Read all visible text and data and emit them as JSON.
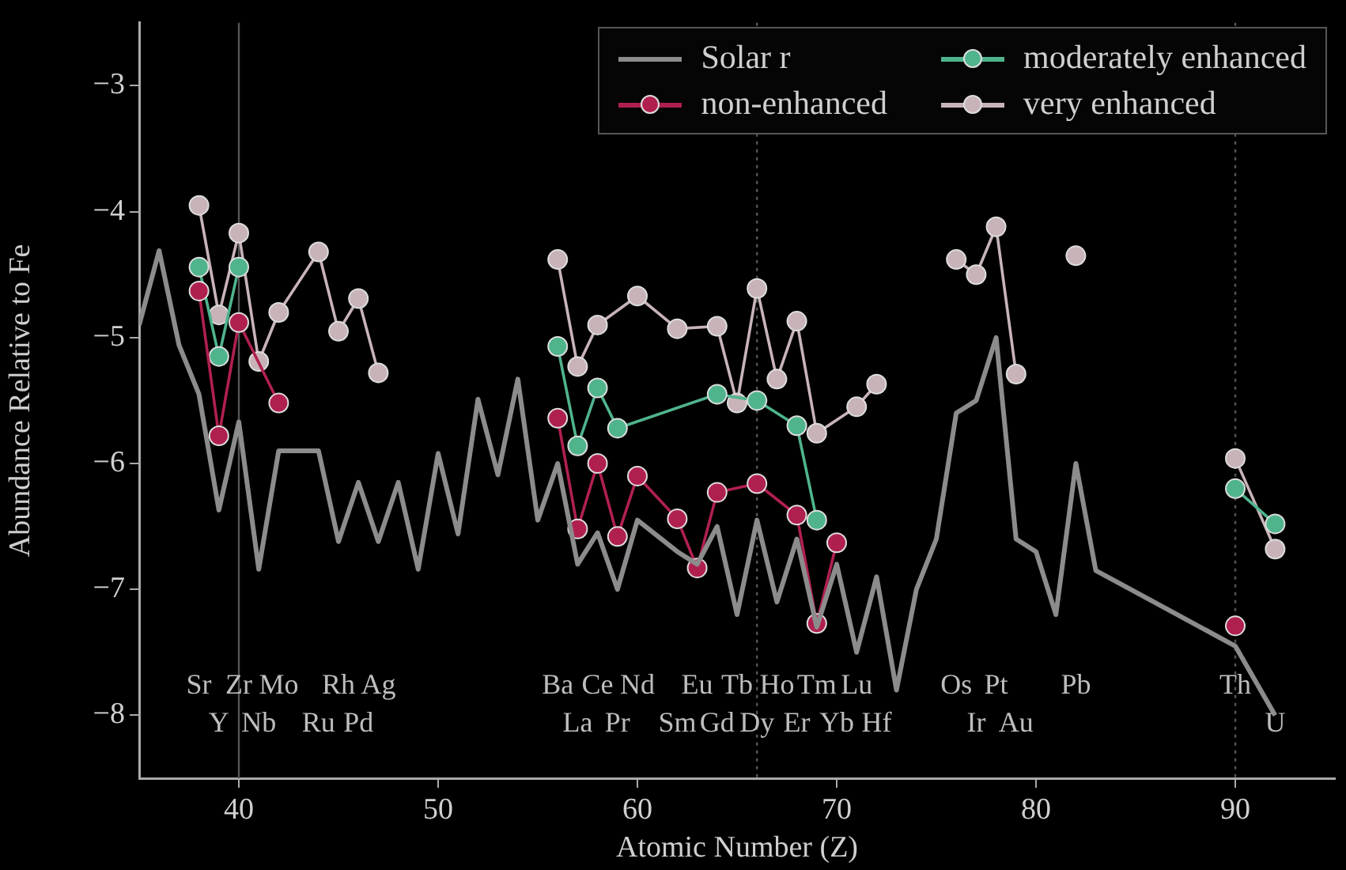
{
  "chart_data": {
    "type": "line",
    "xlabel": "Atomic Number (Z)",
    "ylabel": "Abundance Relative to Fe",
    "xlim": [
      35,
      95
    ],
    "ylim": [
      -8.5,
      -2.5
    ],
    "xticks": [
      40,
      50,
      60,
      70,
      80,
      90
    ],
    "yticks": [
      {
        "value": -8,
        "label": "−8"
      },
      {
        "value": -7,
        "label": "−7"
      },
      {
        "value": -6,
        "label": "−6"
      },
      {
        "value": -5,
        "label": "−5"
      },
      {
        "value": -4,
        "label": "−4"
      },
      {
        "value": -3,
        "label": "−3"
      }
    ],
    "grid": false,
    "legend": "top right",
    "marker": "circle",
    "line_style": "solid",
    "series": [
      {
        "name": "Solar r",
        "type": "line",
        "marker": "none",
        "color": "#8c8c8c",
        "x": [
          35,
          36,
          37,
          38,
          39,
          40,
          41,
          42,
          44,
          45,
          46,
          47,
          48,
          49,
          50,
          51,
          52,
          53,
          54,
          55,
          56,
          57,
          58,
          59,
          60,
          62,
          63,
          64,
          65,
          66,
          67,
          68,
          69,
          70,
          71,
          72,
          73,
          74,
          75,
          76,
          77,
          78,
          79,
          80,
          81,
          82,
          83,
          90,
          92
        ],
        "values": [
          -4.9,
          -4.31,
          -5.06,
          -5.45,
          -6.37,
          -5.67,
          -6.84,
          -5.9,
          -5.9,
          -6.62,
          -6.15,
          -6.62,
          -6.15,
          -6.84,
          -5.92,
          -6.56,
          -5.49,
          -6.09,
          -5.33,
          -6.45,
          -6.0,
          -6.8,
          -6.55,
          -7.0,
          -6.45,
          -6.7,
          -6.8,
          -6.5,
          -7.2,
          -6.45,
          -7.1,
          -6.6,
          -7.3,
          -6.8,
          -7.5,
          -6.9,
          -7.8,
          -7.0,
          -6.6,
          -5.6,
          -5.5,
          -5.0,
          -6.6,
          -6.7,
          -7.2,
          -6.0,
          -6.85,
          -7.45,
          -8.0
        ]
      },
      {
        "name": "non-enhanced",
        "color": "#b0204e",
        "x": [
          38,
          39,
          40,
          42,
          50,
          56,
          57,
          58,
          59,
          60,
          62,
          63,
          64,
          66,
          68,
          69,
          70,
          80,
          90
        ],
        "values": [
          -4.63,
          -5.78,
          -4.88,
          -5.52,
          null,
          -5.64,
          -6.52,
          -6.0,
          -6.58,
          -6.1,
          -6.44,
          -6.83,
          -6.23,
          -6.16,
          -6.41,
          -7.27,
          -6.63,
          null,
          -7.29
        ]
      },
      {
        "name": "moderately enhanced",
        "color": "#4fb48c",
        "x": [
          38,
          39,
          40,
          50,
          56,
          57,
          58,
          59,
          64,
          66,
          68,
          69,
          80,
          90,
          92
        ],
        "values": [
          -4.44,
          -5.15,
          -4.44,
          null,
          -5.07,
          -5.86,
          -5.4,
          -5.72,
          -5.45,
          -5.5,
          -5.7,
          -6.45,
          null,
          -6.2,
          -6.48
        ]
      },
      {
        "name": "very enhanced",
        "color": "#c8b4b8",
        "x": [
          38,
          39,
          40,
          41,
          42,
          44,
          45,
          46,
          47,
          50,
          56,
          57,
          58,
          60,
          62,
          64,
          65,
          66,
          67,
          68,
          69,
          71,
          72,
          74,
          76,
          77,
          78,
          79,
          80,
          82,
          86,
          90,
          92
        ],
        "values": [
          -3.95,
          -4.82,
          -4.17,
          -5.19,
          -4.8,
          -4.32,
          -4.95,
          -4.69,
          -5.28,
          null,
          -4.38,
          -5.23,
          -4.9,
          -4.67,
          -4.93,
          -4.91,
          -5.52,
          -4.61,
          -5.33,
          -4.87,
          -5.76,
          -5.55,
          -5.37,
          null,
          -4.38,
          -4.5,
          -4.12,
          -5.29,
          null,
          -4.35,
          null,
          -5.96,
          -6.68
        ]
      }
    ],
    "ref_lines": [
      {
        "axis": "x",
        "value": 40,
        "color": "#555555",
        "line_style": "solid"
      },
      {
        "axis": "x",
        "value": 66,
        "color": "#555555",
        "line_style": "dotted"
      },
      {
        "axis": "x",
        "value": 90,
        "color": "#555555",
        "line_style": "dotted"
      }
    ],
    "annotations": [
      "Sr",
      "Y",
      "Zr",
      "Nb",
      "Mo",
      "Ru",
      "Rh",
      "Pd",
      "Ag",
      "Ba",
      "La",
      "Ce",
      "Pr",
      "Nd",
      "Sm",
      "Eu",
      "Gd",
      "Tb",
      "Dy",
      "Ho",
      "Er",
      "Tm",
      "Yb",
      "Lu",
      "Hf",
      "Os",
      "Ir",
      "Pt",
      "Au",
      "Pb",
      "Th",
      "U"
    ]
  }
}
